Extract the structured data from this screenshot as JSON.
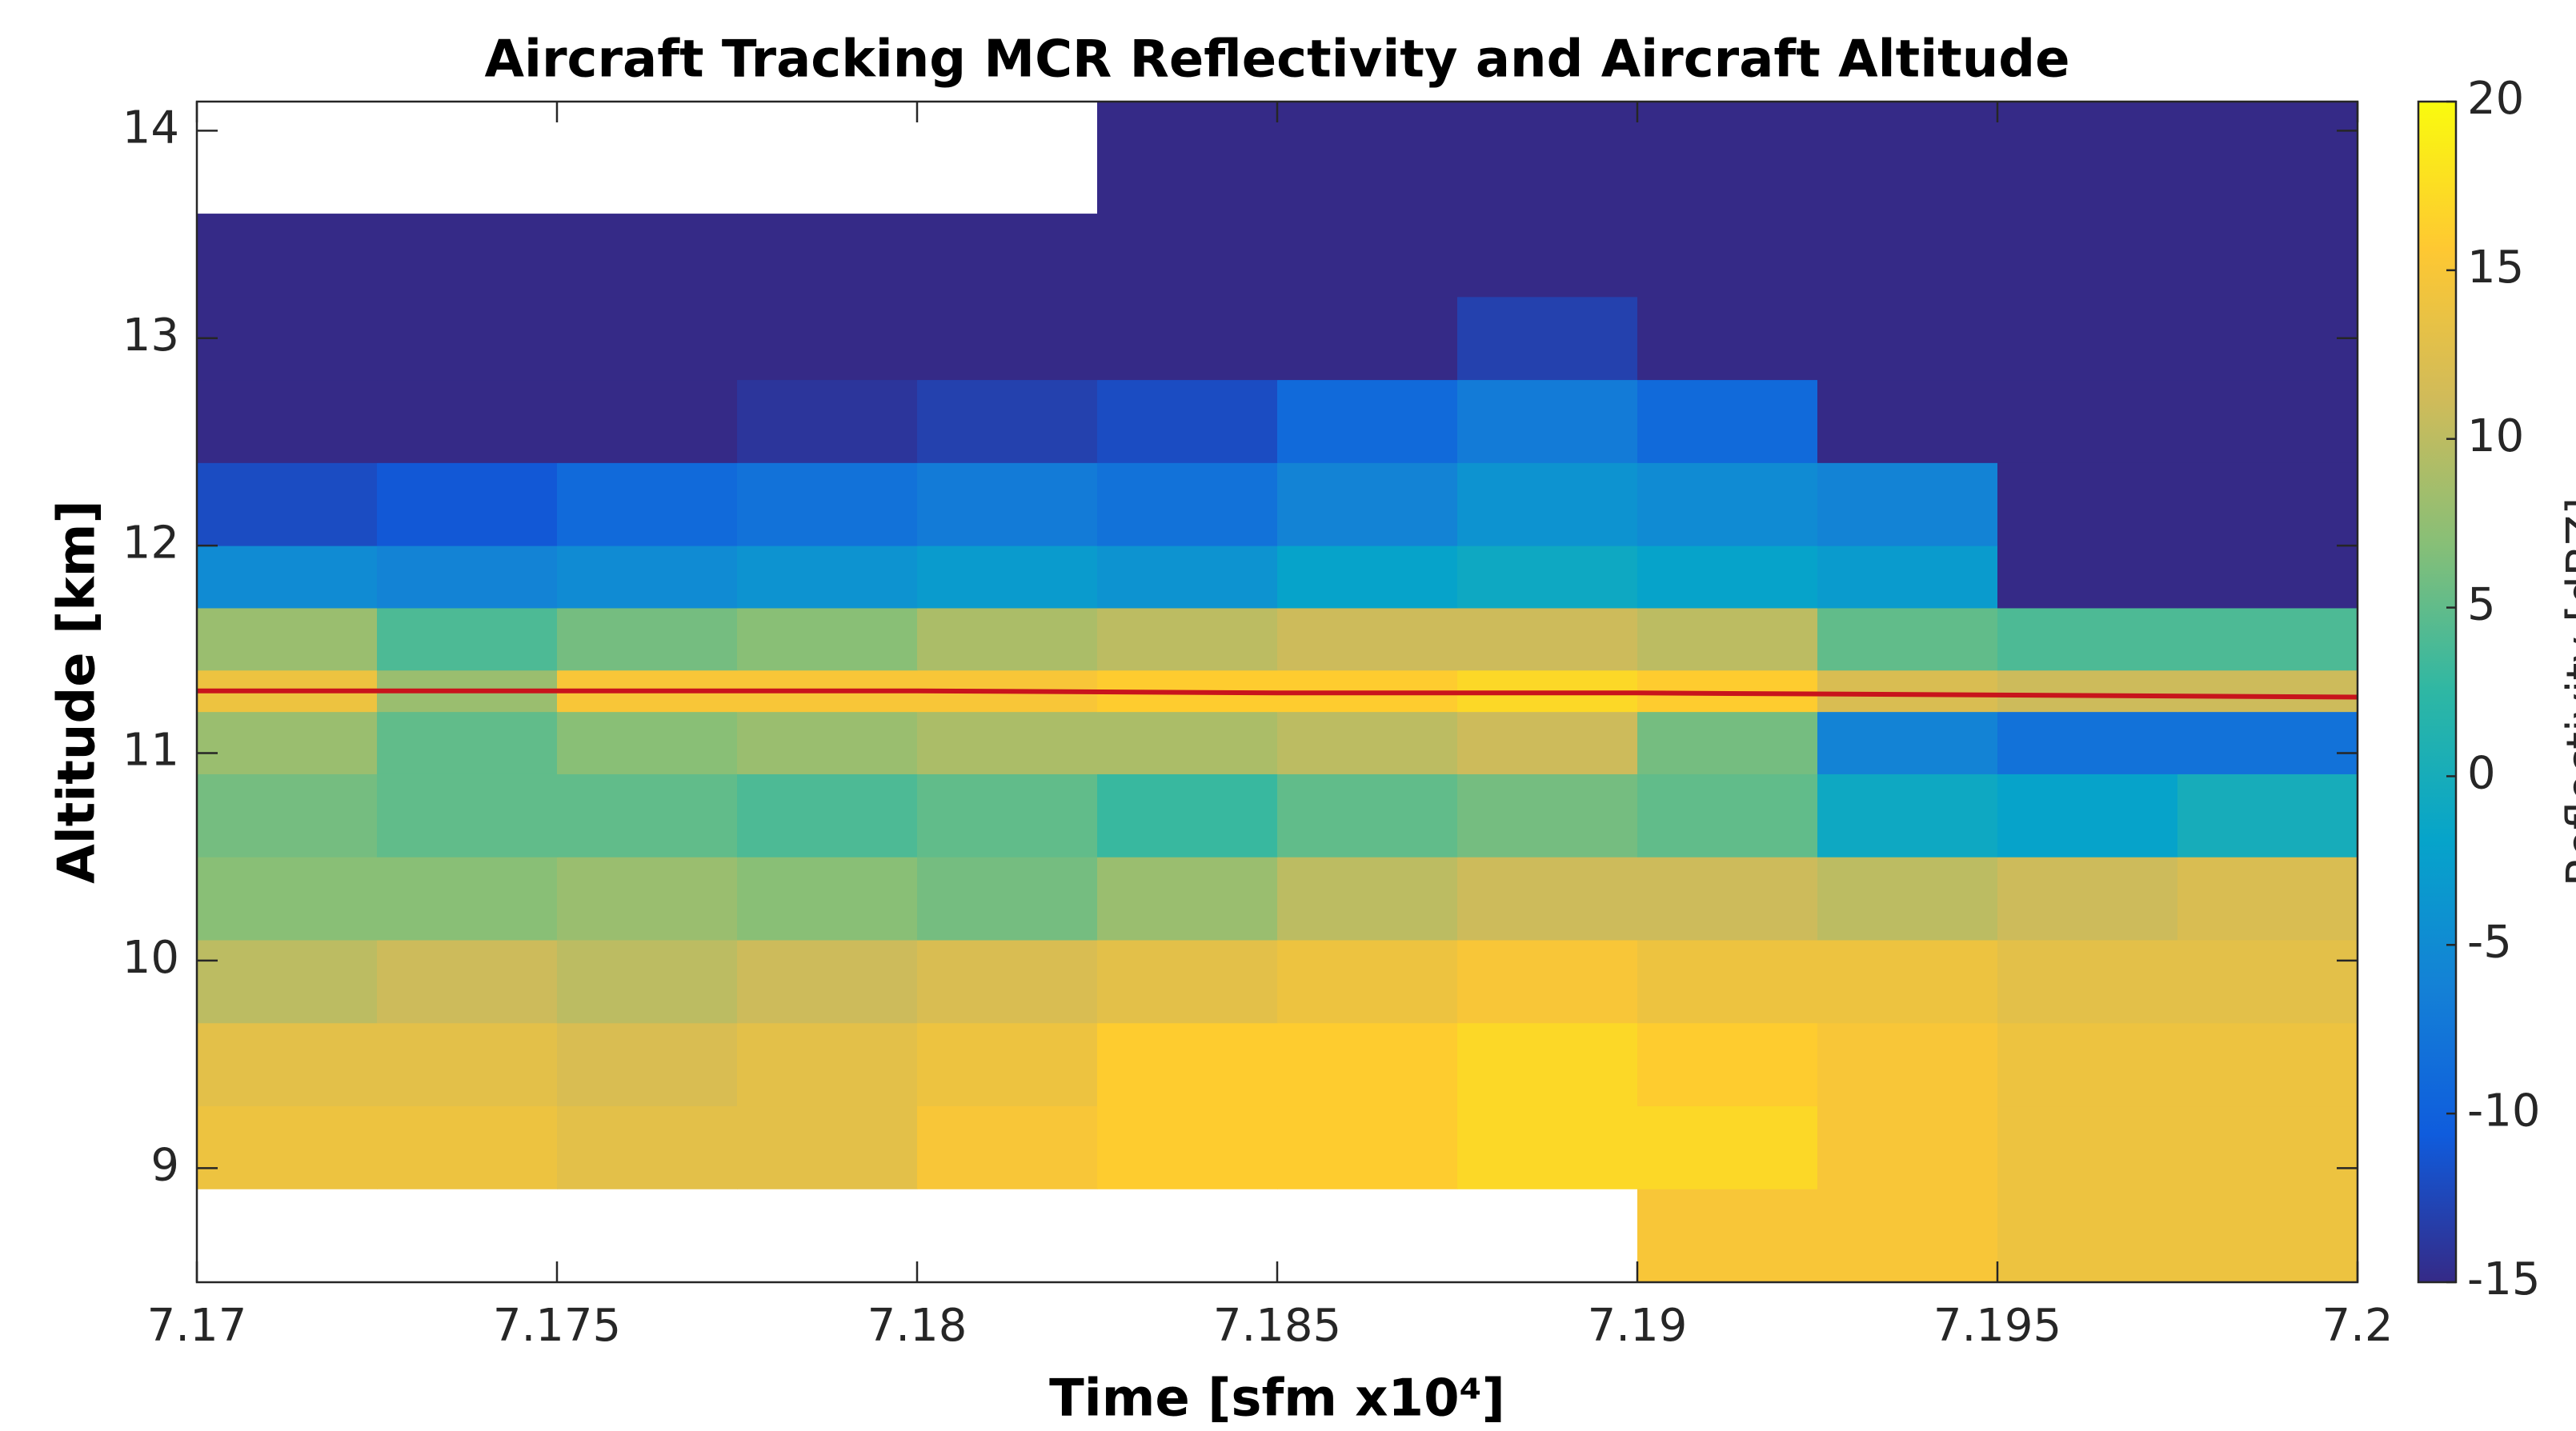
{
  "chart_data": {
    "type": "heatmap",
    "title": "Aircraft Tracking MCR Reflectivity and Aircraft Altitude",
    "xlabel": "Time [sfm x10⁴]",
    "ylabel": "Altitude [km]",
    "colorbar_label": "Reflectivity [dBZ]",
    "xbins": [
      7.17,
      7.1725,
      7.175,
      7.1775,
      7.18,
      7.1825,
      7.185,
      7.1875,
      7.19,
      7.1925,
      7.195,
      7.1975,
      7.2
    ],
    "ybins": [
      8.45,
      8.9,
      9.3,
      9.7,
      10.1,
      10.5,
      10.9,
      11.2,
      11.4,
      11.7,
      12.0,
      12.4,
      12.8,
      13.2,
      13.6,
      14.14
    ],
    "values": [
      [
        null,
        null,
        null,
        null,
        null,
        null,
        null,
        null,
        15,
        15,
        14,
        14
      ],
      [
        14,
        14,
        13,
        13,
        15,
        16,
        16,
        17,
        17,
        15,
        14,
        14
      ],
      [
        13,
        13,
        12,
        13,
        14,
        16,
        16,
        17,
        16,
        15,
        14,
        14
      ],
      [
        10,
        11,
        10,
        11,
        12,
        13,
        14,
        15,
        14,
        14,
        13,
        13
      ],
      [
        7,
        7,
        8,
        7,
        6,
        8,
        10,
        11,
        11,
        10,
        11,
        12
      ],
      [
        6,
        5,
        5,
        4,
        5,
        3,
        5,
        6,
        5,
        -1,
        -2,
        0
      ],
      [
        8,
        5,
        7,
        8,
        9,
        9,
        10,
        11,
        6,
        -6,
        -8,
        -8
      ],
      [
        14,
        8,
        15,
        15,
        15,
        16,
        16,
        17,
        16,
        12,
        11,
        11
      ],
      [
        8,
        4,
        6,
        7,
        9,
        10,
        11,
        11,
        10,
        5,
        4,
        4
      ],
      [
        -5,
        -6,
        -5,
        -4,
        -3,
        -4,
        -2,
        -1,
        -2,
        -3,
        -15,
        -15
      ],
      [
        -12,
        -11,
        -9,
        -8,
        -7,
        -8,
        -6,
        -4,
        -5,
        -6,
        -15,
        -15
      ],
      [
        -15,
        -15,
        -15,
        -14,
        -13,
        -12,
        -9,
        -7,
        -9,
        -15,
        -15,
        -15
      ],
      [
        -15,
        -15,
        -15,
        -15,
        -15,
        -15,
        -15,
        -13,
        -15,
        -15,
        -15,
        -15
      ],
      [
        -15,
        -15,
        -15,
        -15,
        -15,
        -15,
        -15,
        -15,
        -15,
        -15,
        -15,
        -15
      ],
      [
        null,
        null,
        null,
        null,
        null,
        -15,
        -15,
        -15,
        -15,
        -15,
        -15,
        -15
      ]
    ],
    "line": {
      "x": [
        7.17,
        7.175,
        7.18,
        7.185,
        7.19,
        7.195,
        7.2
      ],
      "values": [
        11.3,
        11.3,
        11.3,
        11.29,
        11.29,
        11.28,
        11.27
      ],
      "color": "#c8141c"
    },
    "xlim": [
      7.17,
      7.2
    ],
    "xticks": [
      7.17,
      7.175,
      7.18,
      7.185,
      7.19,
      7.195,
      7.2
    ],
    "ylim": [
      8.45,
      14.14
    ],
    "yticks": [
      9,
      10,
      11,
      12,
      13,
      14
    ],
    "clim": [
      -15,
      20
    ],
    "cticks": [
      -15,
      -10,
      -5,
      0,
      5,
      10,
      15,
      20
    ],
    "colormap": [
      "#352a87",
      "#0f5cdd",
      "#1481d6",
      "#06a4ca",
      "#2eb7a4",
      "#87bf77",
      "#d1bb59",
      "#fec832",
      "#f9fb0e"
    ]
  }
}
